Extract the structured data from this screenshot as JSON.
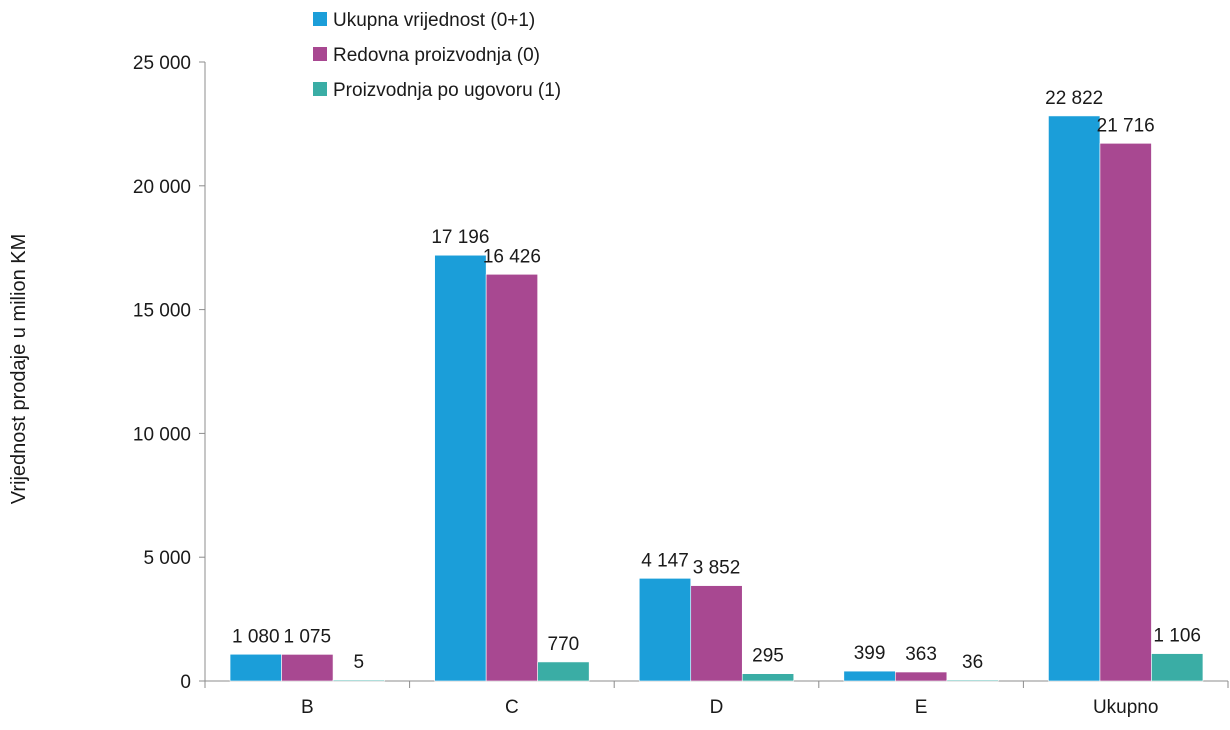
{
  "chart_data": {
    "type": "bar",
    "categories": [
      "B",
      "C",
      "D",
      "E",
      "Ukupno"
    ],
    "series": [
      {
        "name": "Ukupna vrijednost (0+1)",
        "color": "#1b9ed9",
        "values": [
          1080,
          17196,
          4147,
          399,
          22822
        ],
        "labels": [
          "1 080",
          "17 196",
          "4 147",
          "399",
          "22 822"
        ]
      },
      {
        "name": "Redovna proizvodnja (0)",
        "color": "#a84891",
        "values": [
          1075,
          16426,
          3852,
          363,
          21716
        ],
        "labels": [
          "1 075",
          "16 426",
          "3 852",
          "363",
          "21 716"
        ]
      },
      {
        "name": "Proizvodnja po ugovoru (1)",
        "color": "#3aada5",
        "values": [
          5,
          770,
          295,
          36,
          1106
        ],
        "labels": [
          "5",
          "770",
          "295",
          "36",
          "1 106"
        ]
      }
    ],
    "title": "",
    "xlabel": "",
    "ylabel": "Vrijednost prodaje u milion KM",
    "ylim": [
      0,
      25000
    ],
    "yticks": [
      0,
      5000,
      10000,
      15000,
      20000,
      25000
    ],
    "ytick_labels": [
      "0",
      "5 000",
      "10 000",
      "15 000",
      "20 000",
      "25 000"
    ],
    "grid": false,
    "legend_position": "top-left"
  }
}
